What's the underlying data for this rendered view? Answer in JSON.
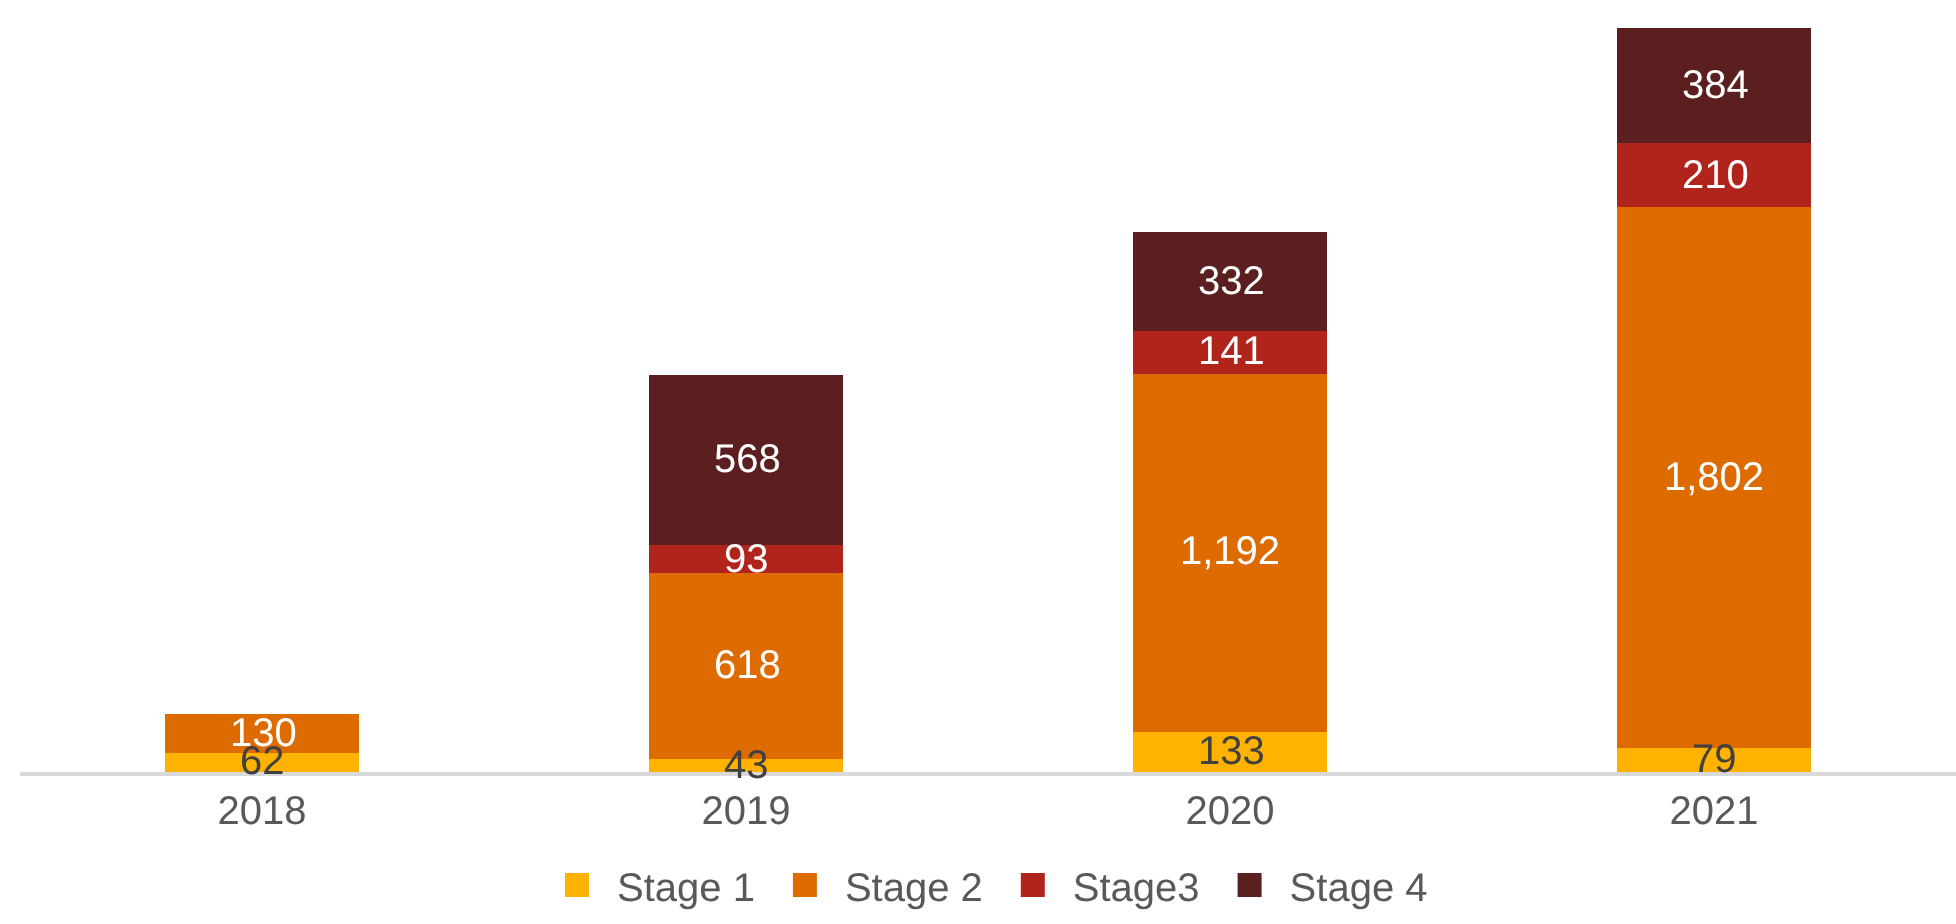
{
  "chart_data": {
    "type": "bar",
    "stacked": true,
    "categories": [
      "2018",
      "2019",
      "2020",
      "2021"
    ],
    "series": [
      {
        "name": "Stage 1",
        "color": "#ffb300",
        "values": [
          62,
          43,
          133,
          79
        ],
        "value_labels": [
          "62",
          "43",
          "133",
          "79"
        ]
      },
      {
        "name": "Stage 2",
        "color": "#dd6b00",
        "values": [
          130,
          618,
          1192,
          1802
        ],
        "value_labels": [
          "130",
          "618",
          "1,192",
          "1,802"
        ]
      },
      {
        "name": "Stage3",
        "color": "#b0241b",
        "values": [
          null,
          93,
          141,
          210
        ],
        "value_labels": [
          null,
          "93",
          "141",
          "210"
        ]
      },
      {
        "name": "Stage 4",
        "color": "#5c1f1f",
        "values": [
          null,
          568,
          332,
          384
        ],
        "value_labels": [
          null,
          "568",
          "332",
          "384"
        ]
      }
    ],
    "legend": "bottom"
  }
}
